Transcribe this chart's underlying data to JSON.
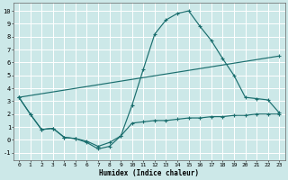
{
  "xlabel": "Humidex (Indice chaleur)",
  "bg_color": "#cce8e8",
  "grid_color": "#ffffff",
  "line_color": "#1a6e6e",
  "xlim": [
    -0.5,
    23.5
  ],
  "ylim": [
    -1.6,
    10.6
  ],
  "xticks": [
    0,
    1,
    2,
    3,
    4,
    5,
    6,
    7,
    8,
    9,
    10,
    11,
    12,
    13,
    14,
    15,
    16,
    17,
    18,
    19,
    20,
    21,
    22,
    23
  ],
  "yticks": [
    -1,
    0,
    1,
    2,
    3,
    4,
    5,
    6,
    7,
    8,
    9,
    10
  ],
  "line1_x": [
    0,
    1,
    2,
    3,
    4,
    5,
    6,
    7,
    8,
    9,
    10,
    11,
    12,
    13,
    14,
    15,
    16,
    17,
    18,
    19,
    20,
    21,
    22,
    23
  ],
  "line1_y": [
    3.3,
    2.0,
    0.8,
    0.9,
    0.2,
    0.1,
    -0.2,
    -0.7,
    -0.5,
    0.3,
    2.7,
    5.5,
    8.2,
    9.3,
    9.8,
    10.0,
    8.8,
    7.7,
    6.3,
    5.0,
    3.3,
    3.2,
    3.1,
    2.1
  ],
  "line2_x": [
    0,
    1,
    2,
    3,
    4,
    5,
    6,
    7,
    8,
    9,
    10,
    11,
    12,
    13,
    14,
    15,
    16,
    17,
    18,
    19,
    20,
    21,
    22,
    23
  ],
  "line2_y": [
    3.3,
    2.0,
    0.8,
    0.9,
    0.2,
    0.1,
    -0.1,
    -0.5,
    -0.2,
    0.3,
    1.3,
    1.4,
    1.5,
    1.5,
    1.6,
    1.7,
    1.7,
    1.8,
    1.8,
    1.9,
    1.9,
    2.0,
    2.0,
    2.0
  ],
  "line3_x": [
    0,
    23
  ],
  "line3_y": [
    3.3,
    6.5
  ]
}
